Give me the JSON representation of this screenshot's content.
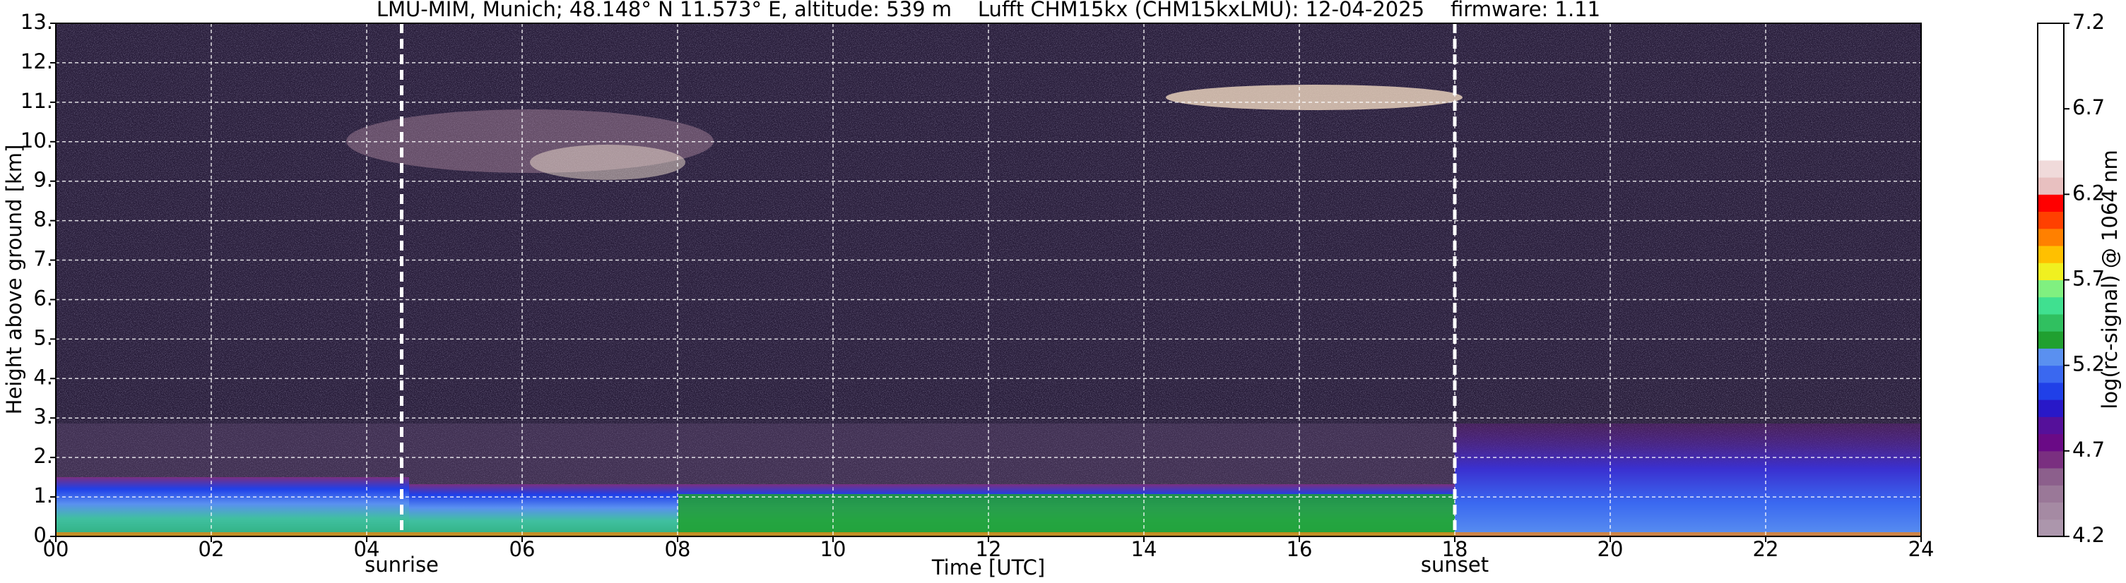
{
  "chart_data": {
    "type": "heatmap",
    "title": "LMU-MIM, Munich; 48.148° N 11.573° E, altitude: 539 m    Lufft CHM15kx (CHM15kxLMU): 12-04-2025    firmware: 1.11",
    "x_label": "Time [UTC]",
    "y_label": "Height above ground [km]",
    "xlim": [
      0,
      24
    ],
    "xticks": [
      {
        "value": 0,
        "label": "00"
      },
      {
        "value": 2,
        "label": "02"
      },
      {
        "value": 4,
        "label": "04"
      },
      {
        "value": 6,
        "label": "06"
      },
      {
        "value": 8,
        "label": "08"
      },
      {
        "value": 10,
        "label": "10"
      },
      {
        "value": 12,
        "label": "12"
      },
      {
        "value": 14,
        "label": "14"
      },
      {
        "value": 16,
        "label": "16"
      },
      {
        "value": 18,
        "label": "18"
      },
      {
        "value": 20,
        "label": "20"
      },
      {
        "value": 22,
        "label": "22"
      },
      {
        "value": 24,
        "label": "24"
      }
    ],
    "ylim": [
      0,
      13
    ],
    "yticks": [
      {
        "value": 0,
        "label": "0."
      },
      {
        "value": 1,
        "label": "1."
      },
      {
        "value": 2,
        "label": "2."
      },
      {
        "value": 3,
        "label": "3."
      },
      {
        "value": 4,
        "label": "4."
      },
      {
        "value": 5,
        "label": "5."
      },
      {
        "value": 6,
        "label": "6."
      },
      {
        "value": 7,
        "label": "7."
      },
      {
        "value": 8,
        "label": "8."
      },
      {
        "value": 9,
        "label": "9."
      },
      {
        "value": 10,
        "label": "10."
      },
      {
        "value": 11,
        "label": "11."
      },
      {
        "value": 12,
        "label": "12."
      },
      {
        "value": 13,
        "label": "13."
      }
    ],
    "grid": true,
    "annotations": [
      {
        "x": 4.45,
        "text": "sunrise"
      },
      {
        "x": 18.0,
        "text": "sunset"
      }
    ],
    "colorbar": {
      "label": "log(rc-signal) @ 1064 nm",
      "lim": [
        4.2,
        7.2
      ],
      "ticks": [
        4.2,
        4.7,
        5.2,
        5.7,
        6.2,
        6.7,
        7.2
      ],
      "colors": [
        "#ac96ac",
        "#a58aa3",
        "#9a7898",
        "#8c5f8c",
        "#7a2f80",
        "#6a0a86",
        "#55109a",
        "#2818c8",
        "#2040e8",
        "#3a68f0",
        "#5a90f0",
        "#20a030",
        "#30c060",
        "#40e090",
        "#80f080",
        "#f0f020",
        "#ffc000",
        "#ff8000",
        "#ff4000",
        "#ff0000",
        "#e8c0c0",
        "#f0dada",
        "#ffffff",
        "#ffffff",
        "#ffffff",
        "#ffffff",
        "#ffffff",
        "#ffffff",
        "#ffffff",
        "#ffffff"
      ]
    }
  }
}
